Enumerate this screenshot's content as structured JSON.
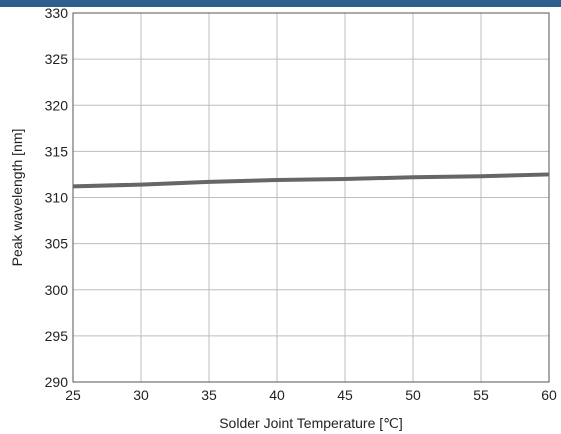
{
  "header_bar": {
    "color": "#2e5f8f"
  },
  "chart_data": {
    "type": "line",
    "title": "",
    "xlabel": "Solder Joint Temperature [℃]",
    "ylabel": "Peak wavelength [nm]",
    "xlim": [
      25,
      60
    ],
    "ylim": [
      290,
      330
    ],
    "x_ticks": [
      "25",
      "30",
      "35",
      "40",
      "45",
      "50",
      "55",
      "60"
    ],
    "y_ticks": [
      "330",
      "325",
      "320",
      "315",
      "310",
      "305",
      "300",
      "295",
      "290"
    ],
    "grid": true,
    "legend": "none",
    "series": [
      {
        "color": "#666666",
        "x": [
          25,
          30,
          35,
          40,
          45,
          50,
          55,
          60
        ],
        "y": [
          311.2,
          311.4,
          311.7,
          311.9,
          312.0,
          312.2,
          312.3,
          312.5
        ]
      }
    ]
  }
}
